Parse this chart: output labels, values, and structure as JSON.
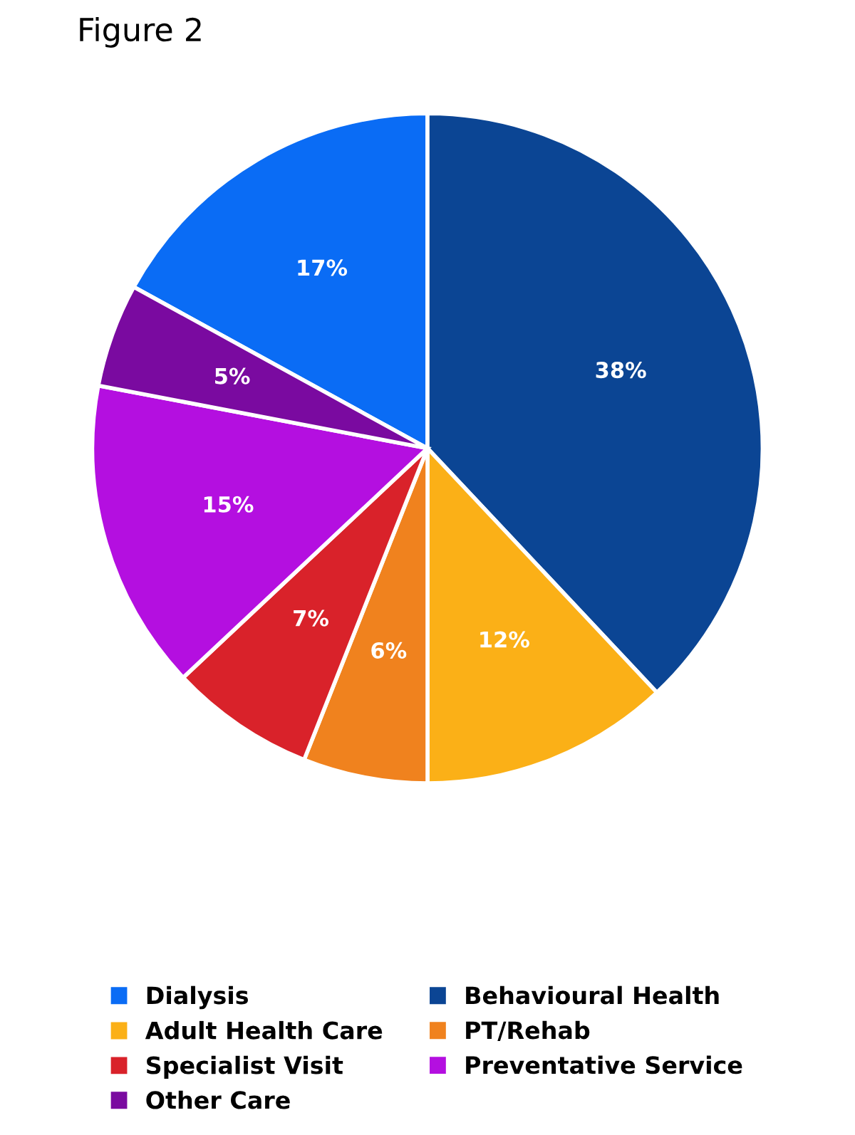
{
  "chart_data": {
    "type": "pie",
    "title": "Figure 2",
    "categories": [
      "Dialysis",
      "Behavioural Health",
      "Adult Health Care",
      "PT/Rehab",
      "Specialist Visit",
      "Preventative Service",
      "Other Care"
    ],
    "values": [
      17,
      38,
      12,
      6,
      7,
      15,
      5
    ],
    "colors": [
      "#0a6cf5",
      "#0b4594",
      "#fbb017",
      "#f0821e",
      "#d9222a",
      "#b40fe0",
      "#7a0aa0"
    ],
    "value_labels": [
      "17%",
      "38%",
      "12%",
      "6%",
      "7%",
      "15%",
      "5%"
    ],
    "legend": "bottom"
  }
}
